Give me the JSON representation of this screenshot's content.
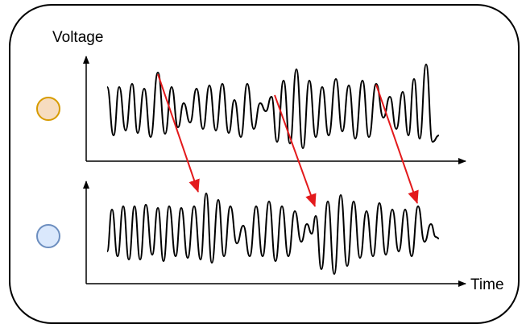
{
  "labels": {
    "y_axis": "Voltage",
    "x_axis": "Time"
  },
  "colors": {
    "panel_stroke": "#000000",
    "panel_fill": "#ffffff",
    "signal": "#000000",
    "arrow": "#e31a1c",
    "channel_top_fill": "#f6dcc0",
    "channel_top_stroke": "#d79b00",
    "channel_bottom_fill": "#dae8fc",
    "channel_bottom_stroke": "#6c8ebf"
  },
  "channels": [
    {
      "name": "channel-top",
      "indicator": "orange-circle"
    },
    {
      "name": "channel-bottom",
      "indicator": "blue-circle"
    }
  ],
  "delay_arrows": 3
}
